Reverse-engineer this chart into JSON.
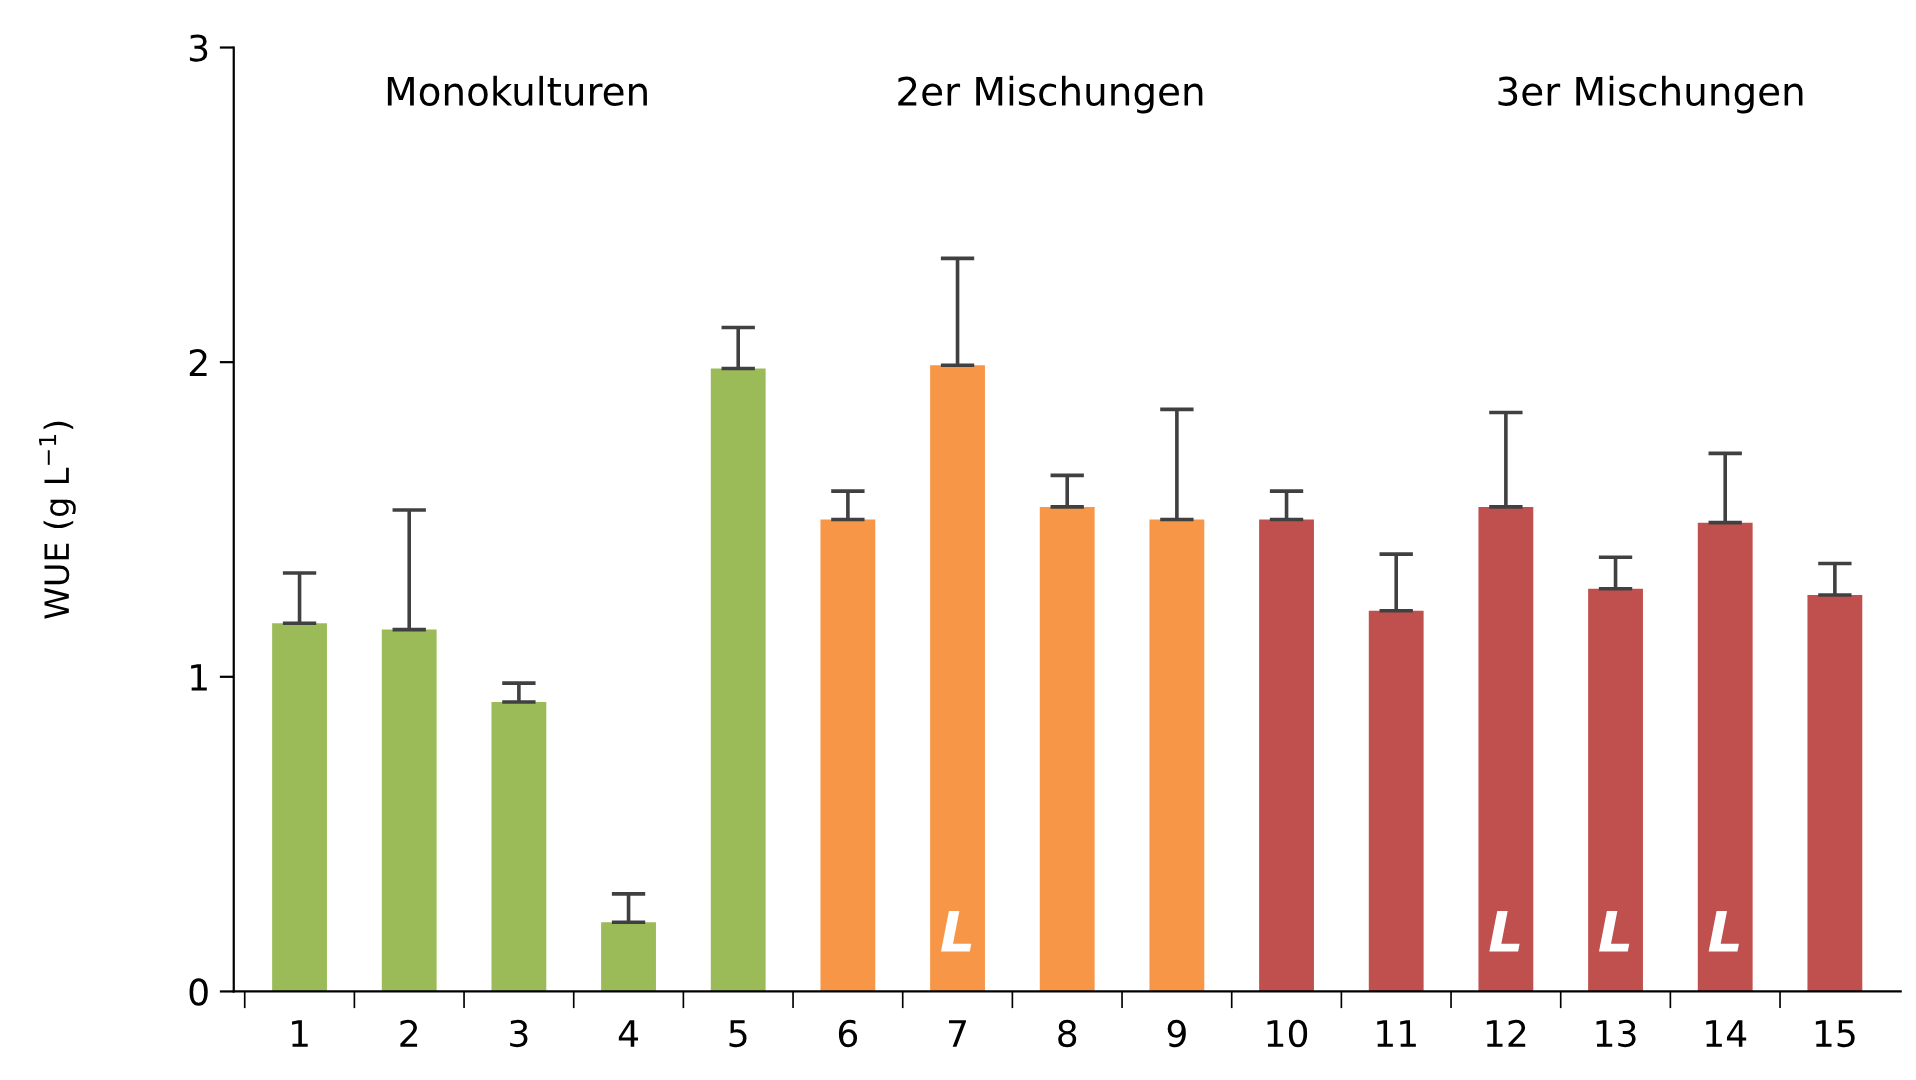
{
  "chart_data": {
    "type": "bar",
    "ylabel": "WUE (g L$^{−1}$)",
    "categories": [
      "1",
      "2",
      "3",
      "4",
      "5",
      "6",
      "7",
      "8",
      "9",
      "10",
      "11",
      "12",
      "13",
      "14",
      "15"
    ],
    "values": [
      1.17,
      1.15,
      0.92,
      0.22,
      1.98,
      1.5,
      1.99,
      1.54,
      1.5,
      1.5,
      1.21,
      1.54,
      1.28,
      1.49,
      1.26
    ],
    "errors": [
      [
        1.17,
        1.33
      ],
      [
        1.15,
        1.53
      ],
      [
        0.92,
        0.98
      ],
      [
        0.22,
        0.31
      ],
      [
        1.98,
        2.11
      ],
      [
        1.5,
        1.59
      ],
      [
        1.99,
        2.33
      ],
      [
        1.54,
        1.64
      ],
      [
        1.5,
        1.85
      ],
      [
        1.5,
        1.59
      ],
      [
        1.21,
        1.39
      ],
      [
        1.54,
        1.84
      ],
      [
        1.28,
        1.38
      ],
      [
        1.49,
        1.71
      ],
      [
        1.26,
        1.36
      ]
    ],
    "colors": [
      "#9bbb59",
      "#9bbb59",
      "#9bbb59",
      "#9bbb59",
      "#9bbb59",
      "#f79646",
      "#f79646",
      "#f79646",
      "#f79646",
      "#c0504d",
      "#c0504d",
      "#c0504d",
      "#c0504d",
      "#c0504d",
      "#c0504d"
    ],
    "ylim": [
      0,
      3
    ],
    "yticks": [
      0,
      1,
      2,
      3
    ],
    "grid": false,
    "legend": false,
    "annotations": [
      "Monokulturen",
      "2er Mischungen",
      "3er Mischungen",
      "L",
      "L",
      "L",
      "L"
    ]
  }
}
